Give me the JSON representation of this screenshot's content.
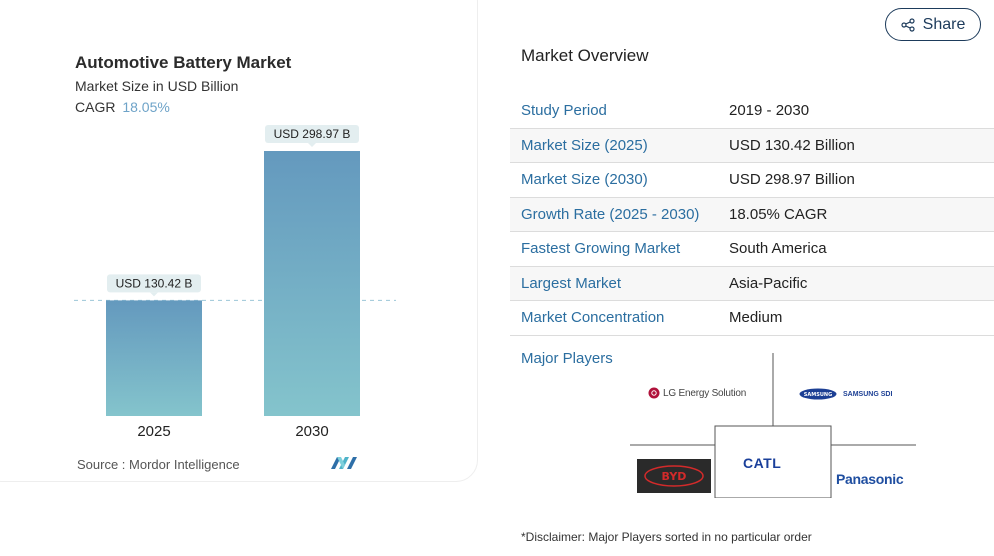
{
  "chart_title": "Automotive Battery Market",
  "chart_subtitle": "Market Size in USD Billion",
  "cagr_label": "CAGR",
  "cagr_value": "18.05%",
  "chart_data": {
    "type": "bar",
    "title": "Automotive Battery Market",
    "subtitle": "Market Size in USD Billion",
    "categories": [
      "2025",
      "2030"
    ],
    "values": [
      130.42,
      298.97
    ],
    "data_labels": [
      "USD 130.42 B",
      "USD 298.97 B"
    ],
    "xlabel": "",
    "ylabel": "",
    "ylim": [
      0,
      298.97
    ],
    "reference_line_value": 130.42,
    "grid": false,
    "colors": {
      "bar_top": "#6499be",
      "bar_bottom": "#84c4cc",
      "label_bg": "#e3eef0",
      "ref_line": "#9cc6d8"
    }
  },
  "source_label": "Source :",
  "source_name": "Mordor Intelligence",
  "share": {
    "label": "Share",
    "icon": "share-icon"
  },
  "overview": {
    "title": "Market Overview",
    "rows": [
      {
        "key": "Study Period",
        "value": "2019 - 2030"
      },
      {
        "key": "Market Size (2025)",
        "value": "USD 130.42 Billion"
      },
      {
        "key": "Market Size (2030)",
        "value": "USD 298.97 Billion"
      },
      {
        "key": "Growth Rate (2025 - 2030)",
        "value": "18.05% CAGR"
      },
      {
        "key": "Fastest Growing Market",
        "value": "South America"
      },
      {
        "key": "Largest Market",
        "value": "Asia-Pacific"
      },
      {
        "key": "Market Concentration",
        "value": "Medium"
      }
    ]
  },
  "players": {
    "label": "Major Players",
    "lg": "LG Energy Solution",
    "samsung_wordmark": "SAMSUNG",
    "samsung_sdi": "SAMSUNG SDI",
    "catl": "CATL",
    "byd": "BYD",
    "panasonic": "Panasonic"
  },
  "disclaimer": "*Disclaimer: Major Players sorted in no particular order",
  "accent": "#2b6ea0"
}
